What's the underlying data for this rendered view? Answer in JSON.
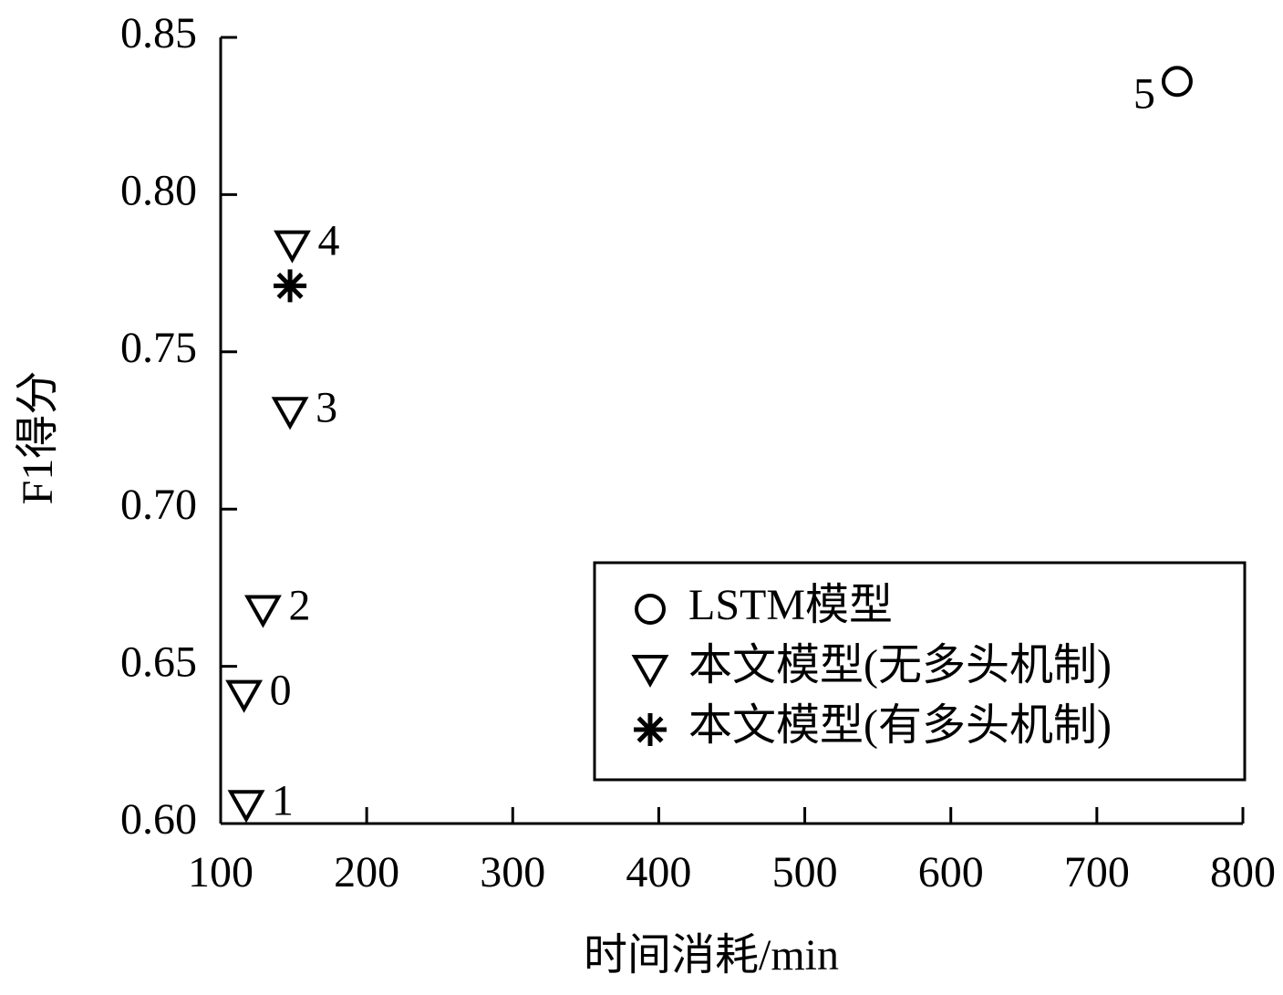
{
  "chart_data": {
    "type": "scatter",
    "x_label": "时间消耗/min",
    "y_label": "F1得分",
    "xlim": [
      100,
      800
    ],
    "xticks": [
      100,
      200,
      300,
      400,
      500,
      600,
      700,
      800
    ],
    "ylim": [
      0.6,
      0.85
    ],
    "yticks": [
      {
        "value": 0.6,
        "label": "0.60"
      },
      0.65,
      {
        "value": 0.7,
        "label": "0.70"
      },
      0.75,
      {
        "value": 0.8,
        "label": "0.80"
      },
      0.85
    ],
    "legend": "lower right",
    "grid": false,
    "series": [
      {
        "name": "LSTM模型",
        "marker": "circle",
        "color": "#000000",
        "x": [
          755
        ],
        "values": [
          0.836
        ],
        "labels": [
          "5"
        ]
      },
      {
        "name": "本文模型(无多头机制)",
        "marker": "triangle-down",
        "color": "#000000",
        "x": [
          116,
          117.5,
          129,
          147.5,
          149
        ],
        "values": [
          0.641,
          0.606,
          0.668,
          0.731,
          0.784
        ],
        "labels": [
          "0",
          "1",
          "2",
          "3",
          "4"
        ]
      },
      {
        "name": "本文模型(有多头机制)",
        "marker": "asterisk",
        "color": "#000000",
        "x": [
          147.5
        ],
        "values": [
          0.771
        ]
      }
    ]
  }
}
